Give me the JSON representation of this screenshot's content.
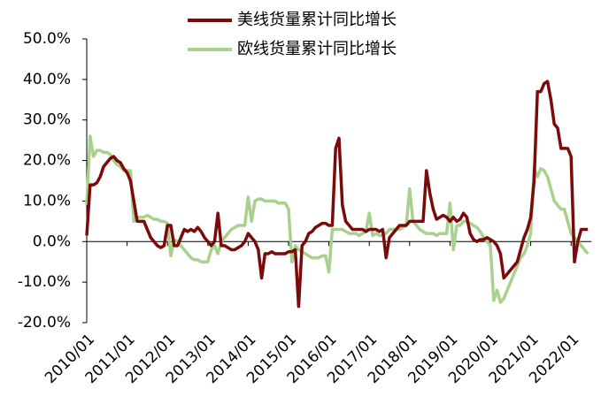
{
  "chart_data": {
    "type": "line",
    "categories": [
      "2010/01",
      null,
      null,
      null,
      null,
      null,
      null,
      null,
      null,
      null,
      null,
      null,
      "2011/01",
      null,
      null,
      null,
      null,
      null,
      null,
      null,
      null,
      null,
      null,
      null,
      "2012/01",
      null,
      null,
      null,
      null,
      null,
      null,
      null,
      null,
      null,
      null,
      null,
      "2013/01",
      null,
      null,
      null,
      null,
      null,
      null,
      null,
      null,
      null,
      null,
      null,
      "2014/01",
      null,
      null,
      null,
      null,
      null,
      null,
      null,
      null,
      null,
      null,
      null,
      "2015/01",
      null,
      null,
      null,
      null,
      null,
      null,
      null,
      null,
      null,
      null,
      null,
      "2016/01",
      null,
      null,
      null,
      null,
      null,
      null,
      null,
      null,
      null,
      null,
      null,
      "2017/01",
      null,
      null,
      null,
      null,
      null,
      null,
      null,
      null,
      null,
      null,
      null,
      "2018/01",
      null,
      null,
      null,
      null,
      null,
      null,
      null,
      null,
      null,
      null,
      null,
      "2019/01",
      null,
      null,
      null,
      null,
      null,
      null,
      null,
      null,
      null,
      null,
      null,
      "2020/01",
      null,
      null,
      null,
      null,
      null,
      null,
      null,
      null,
      null,
      null,
      null,
      "2021/01",
      null,
      null,
      null,
      null,
      null,
      null,
      null,
      null,
      null,
      null,
      null,
      "2022/01",
      null,
      null,
      null,
      null,
      null
    ],
    "series": [
      {
        "name": "美线货量累计同比增长",
        "color": "#7b0a0a",
        "values": [
          1.5,
          14,
          14,
          14.5,
          16,
          18.5,
          19.5,
          20.5,
          21,
          20,
          19.5,
          18,
          17,
          15,
          10,
          5,
          5,
          5,
          3,
          1,
          0,
          -1,
          -1.5,
          -1,
          4,
          4,
          -1,
          -1,
          1,
          3,
          2.5,
          3,
          2.5,
          3.5,
          2.5,
          1,
          0,
          -1,
          0,
          7,
          -1,
          -1,
          -1.5,
          -2,
          -2,
          -1.5,
          -1,
          0,
          2,
          1,
          0,
          -2,
          -9,
          -3,
          -3,
          -2.5,
          -3,
          -3,
          -3,
          -3,
          -2.5,
          -2.5,
          -2,
          -16,
          -1,
          0,
          2,
          2.5,
          3.5,
          4,
          4.5,
          4.5,
          4,
          4,
          23,
          25.5,
          9,
          5,
          4,
          3,
          3,
          3,
          3,
          2.5,
          3,
          3,
          3,
          2.5,
          3,
          -4,
          1,
          2,
          3,
          4,
          4,
          4,
          5,
          5,
          5,
          5,
          5,
          17.5,
          12,
          8,
          5.5,
          6,
          6.5,
          6,
          5,
          6,
          5,
          5.5,
          7,
          6,
          2,
          0.5,
          0,
          0.5,
          0.5,
          1,
          0.5,
          0,
          -1,
          -3,
          -9,
          -8,
          -7,
          -6,
          -5,
          -2,
          1,
          3,
          6,
          15,
          37,
          37,
          39,
          39.5,
          35,
          29,
          28,
          23,
          23,
          23,
          21,
          -5,
          0,
          3,
          3,
          3
        ]
      },
      {
        "name": "欧线货量累计同比增长",
        "color": "#a9d18e",
        "values": [
          9,
          26,
          21,
          22.5,
          22.5,
          22,
          22,
          21.5,
          20,
          19,
          18.5,
          17.5,
          17.5,
          17.5,
          5,
          6,
          6,
          6,
          6.5,
          6,
          5.5,
          5.5,
          5,
          5,
          4.5,
          -3.5,
          0.5,
          0,
          -1,
          -2,
          -3,
          -4,
          -4.5,
          -4.5,
          -5,
          -5,
          -5,
          -2,
          -1,
          -3,
          0,
          1,
          2,
          3,
          3.5,
          4,
          4,
          4,
          11,
          5,
          10,
          10.5,
          10.5,
          10,
          10,
          10,
          10,
          9.5,
          9.5,
          9.5,
          8,
          -5,
          -1,
          -2,
          -2.5,
          -3,
          -3.5,
          -4,
          -4,
          -4,
          -3.5,
          -3.5,
          -7.5,
          3,
          3,
          3,
          3,
          2.5,
          2,
          2,
          2,
          1.5,
          2,
          2.5,
          7,
          1.5,
          2,
          1.5,
          1.5,
          2,
          3,
          3,
          3,
          3,
          3.5,
          4,
          13,
          5,
          4,
          3,
          2.5,
          2,
          2,
          2,
          1.5,
          2,
          2,
          2,
          9.5,
          -2,
          4,
          4,
          5,
          5,
          4.5,
          4,
          3.5,
          2.5,
          1,
          0,
          -1,
          -14.5,
          -12,
          -15,
          -14,
          -12,
          -10,
          -8,
          -6,
          -4,
          -3,
          -1,
          2,
          18,
          16,
          18,
          17.5,
          16,
          13,
          10,
          9,
          8,
          8,
          5,
          2,
          1,
          0,
          -1,
          -2,
          -3
        ]
      }
    ],
    "ylim": [
      -20,
      50
    ],
    "yticks": [
      {
        "value": -20,
        "label": "-20.0%"
      },
      {
        "value": -10,
        "label": "-10.0%"
      },
      {
        "value": 0,
        "label": "0.0%"
      },
      {
        "value": 10,
        "label": "10.0%"
      },
      {
        "value": 20,
        "label": "20.0%"
      },
      {
        "value": 30,
        "label": "30.0%"
      },
      {
        "value": 40,
        "label": "40.0%"
      },
      {
        "value": 50,
        "label": "50.0%"
      }
    ],
    "legend": "top"
  }
}
